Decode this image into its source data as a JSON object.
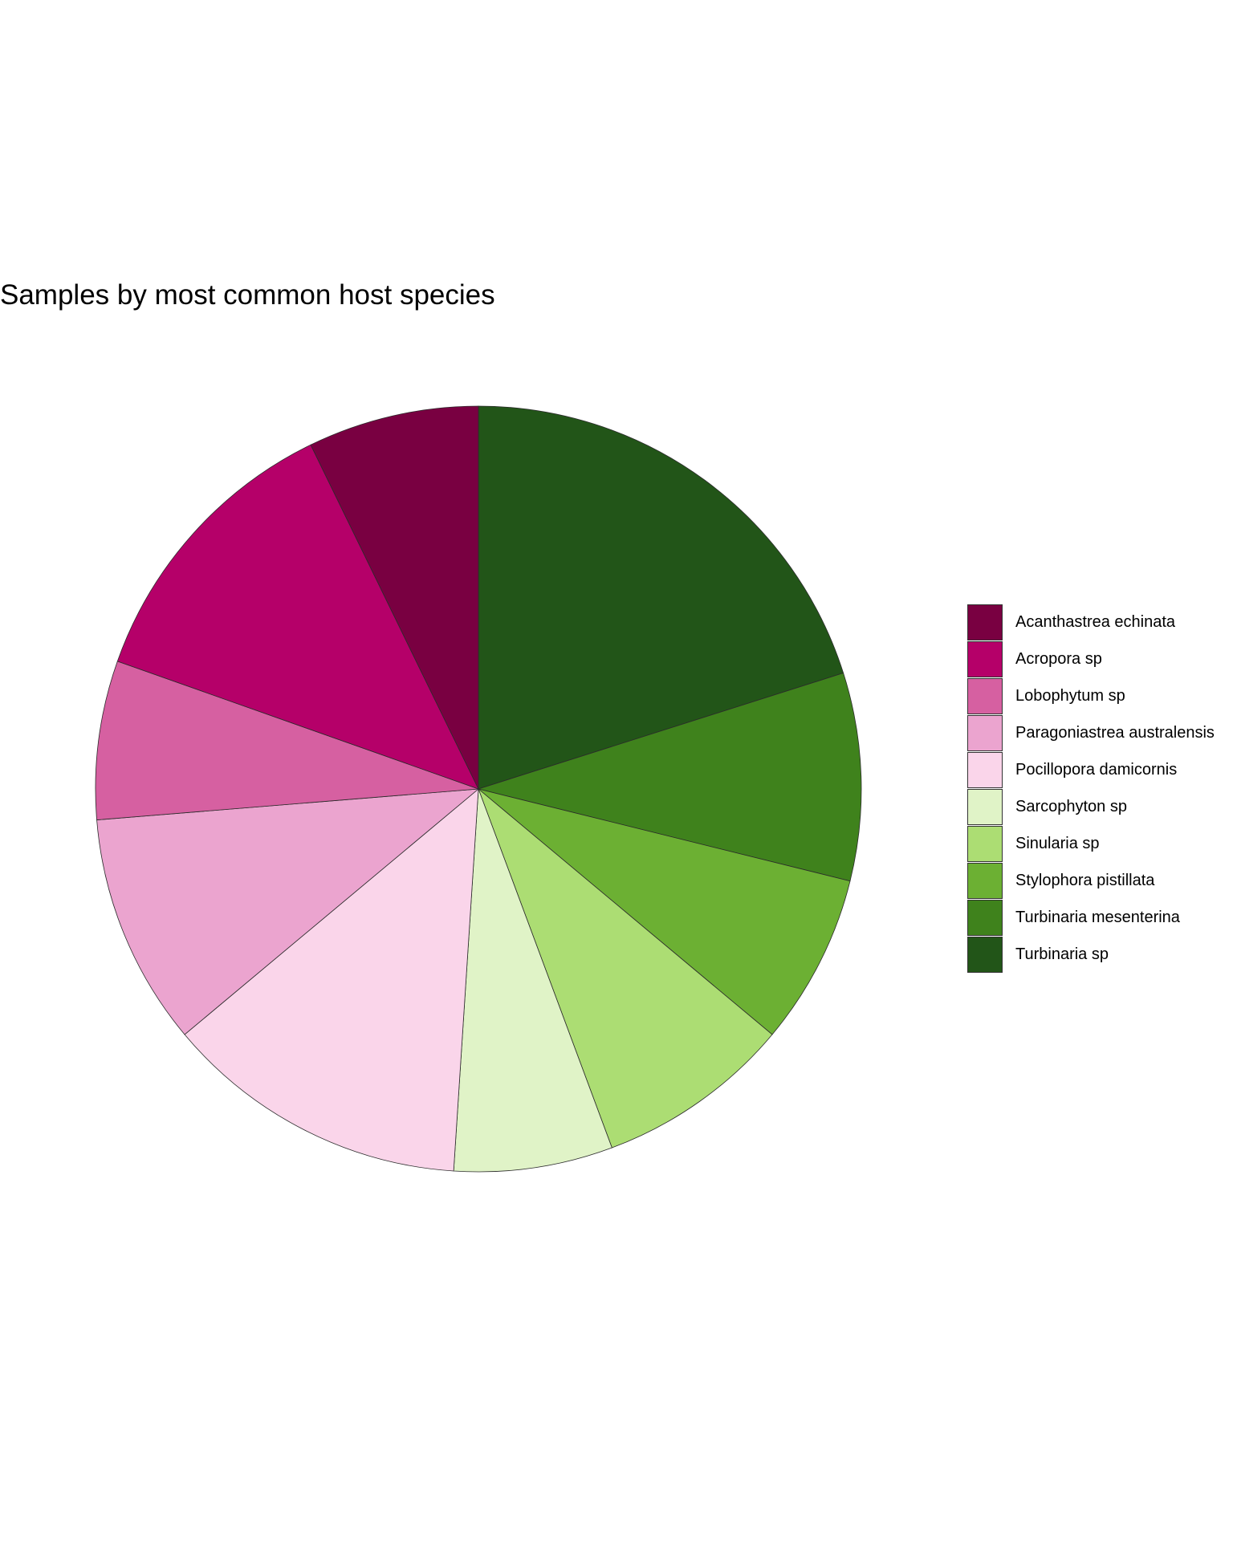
{
  "chart_data": {
    "type": "pie",
    "title": "Samples by most common host species",
    "legend_position": "right",
    "start": "top",
    "direction": "clockwise",
    "slices": [
      {
        "label": "Turbinaria sp",
        "value": 19.5,
        "color": "#225518"
      },
      {
        "label": "Turbinaria mesenterina",
        "value": 8.5,
        "color": "#3f821c"
      },
      {
        "label": "Stylophora pistillata",
        "value": 7.0,
        "color": "#6cb033"
      },
      {
        "label": "Sinularia sp",
        "value": 8.0,
        "color": "#acdd73"
      },
      {
        "label": "Sarcophyton sp",
        "value": 6.5,
        "color": "#e0f3c7"
      },
      {
        "label": "Pocillopora damicornis",
        "value": 12.5,
        "color": "#fad5ea"
      },
      {
        "label": "Paragoniastrea australensis",
        "value": 9.5,
        "color": "#eba4cf"
      },
      {
        "label": "Lobophytum sp",
        "value": 6.5,
        "color": "#d660a1"
      },
      {
        "label": "Acropora sp",
        "value": 12.0,
        "color": "#b50069"
      },
      {
        "label": "Acanthastrea echinata",
        "value": 7.0,
        "color": "#790041"
      }
    ],
    "legend": [
      {
        "label": "Acanthastrea echinata",
        "color": "#790041"
      },
      {
        "label": "Acropora sp",
        "color": "#b50069"
      },
      {
        "label": "Lobophytum sp",
        "color": "#d660a1"
      },
      {
        "label": "Paragoniastrea australensis",
        "color": "#eba4cf"
      },
      {
        "label": "Pocillopora damicornis",
        "color": "#fad5ea"
      },
      {
        "label": "Sarcophyton sp",
        "color": "#e0f3c7"
      },
      {
        "label": "Sinularia sp",
        "color": "#acdd73"
      },
      {
        "label": "Stylophora pistillata",
        "color": "#6cb033"
      },
      {
        "label": "Turbinaria mesenterina",
        "color": "#3f821c"
      },
      {
        "label": "Turbinaria sp",
        "color": "#225518"
      }
    ]
  }
}
